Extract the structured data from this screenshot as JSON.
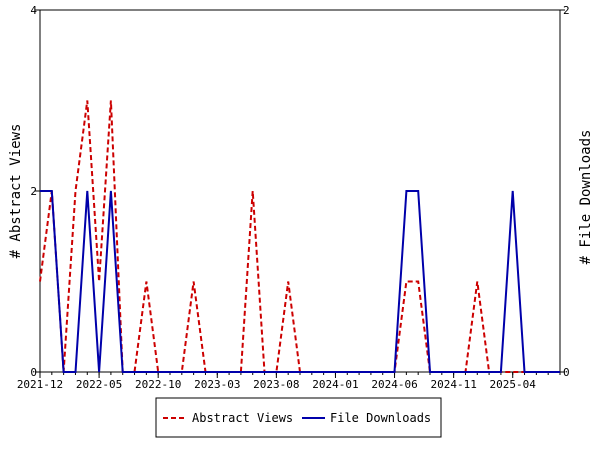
{
  "chart_data": {
    "type": "line",
    "x_tick_labels": [
      "2021-12",
      "2022-05",
      "2022-10",
      "2023-03",
      "2023-08",
      "2024-01",
      "2024-06",
      "2024-11",
      "2025-04"
    ],
    "x_range": [
      "2021-12",
      "2025-08"
    ],
    "y_left": {
      "label": "# Abstract Views",
      "range": [
        0,
        4
      ],
      "ticks": [
        "0",
        "2",
        "4"
      ]
    },
    "y_right": {
      "label": "# File Downloads",
      "range": [
        0,
        2
      ],
      "ticks": [
        "0",
        "2"
      ]
    },
    "grid": false,
    "legend_position": "bottom",
    "series": [
      {
        "name": "Abstract Views",
        "axis": "left",
        "color": "#cc0000",
        "style": "dashed",
        "x": [
          "2021-12",
          "2022-01",
          "2022-02",
          "2022-03",
          "2022-04",
          "2022-05",
          "2022-06",
          "2022-07",
          "2022-08",
          "2022-09",
          "2022-10",
          "2022-11",
          "2022-12",
          "2023-01",
          "2023-02",
          "2023-03",
          "2023-04",
          "2023-05",
          "2023-06",
          "2023-07",
          "2023-08",
          "2023-09",
          "2023-10",
          "2023-11",
          "2023-12",
          "2024-01",
          "2024-02",
          "2024-03",
          "2024-04",
          "2024-05",
          "2024-06",
          "2024-07",
          "2024-08",
          "2024-09",
          "2024-10",
          "2024-11",
          "2024-12",
          "2025-01",
          "2025-02",
          "2025-03",
          "2025-04",
          "2025-05",
          "2025-06",
          "2025-07",
          "2025-08"
        ],
        "values": [
          1,
          2,
          0,
          2,
          3,
          1,
          3,
          0,
          0,
          1,
          0,
          0,
          0,
          1,
          0,
          0,
          0,
          0,
          2,
          0,
          0,
          1,
          0,
          0,
          0,
          0,
          0,
          0,
          0,
          0,
          0,
          1,
          1,
          0,
          0,
          0,
          0,
          1,
          0,
          0,
          0,
          0,
          0,
          0,
          0
        ]
      },
      {
        "name": "File Downloads",
        "axis": "right",
        "color": "#0000aa",
        "style": "solid",
        "x": [
          "2021-12",
          "2022-01",
          "2022-02",
          "2022-03",
          "2022-04",
          "2022-05",
          "2022-06",
          "2022-07",
          "2022-08",
          "2022-09",
          "2022-10",
          "2022-11",
          "2022-12",
          "2023-01",
          "2023-02",
          "2023-03",
          "2023-04",
          "2023-05",
          "2023-06",
          "2023-07",
          "2023-08",
          "2023-09",
          "2023-10",
          "2023-11",
          "2023-12",
          "2024-01",
          "2024-02",
          "2024-03",
          "2024-04",
          "2024-05",
          "2024-06",
          "2024-07",
          "2024-08",
          "2024-09",
          "2024-10",
          "2024-11",
          "2024-12",
          "2025-01",
          "2025-02",
          "2025-03",
          "2025-04",
          "2025-05",
          "2025-06",
          "2025-07",
          "2025-08"
        ],
        "values": [
          1,
          1,
          0,
          0,
          1,
          0,
          1,
          0,
          0,
          0,
          0,
          0,
          0,
          0,
          0,
          0,
          0,
          0,
          0,
          0,
          0,
          0,
          0,
          0,
          0,
          0,
          0,
          0,
          0,
          0,
          0,
          1,
          1,
          0,
          0,
          0,
          0,
          0,
          0,
          0,
          1,
          0,
          0,
          0,
          0
        ]
      }
    ]
  }
}
